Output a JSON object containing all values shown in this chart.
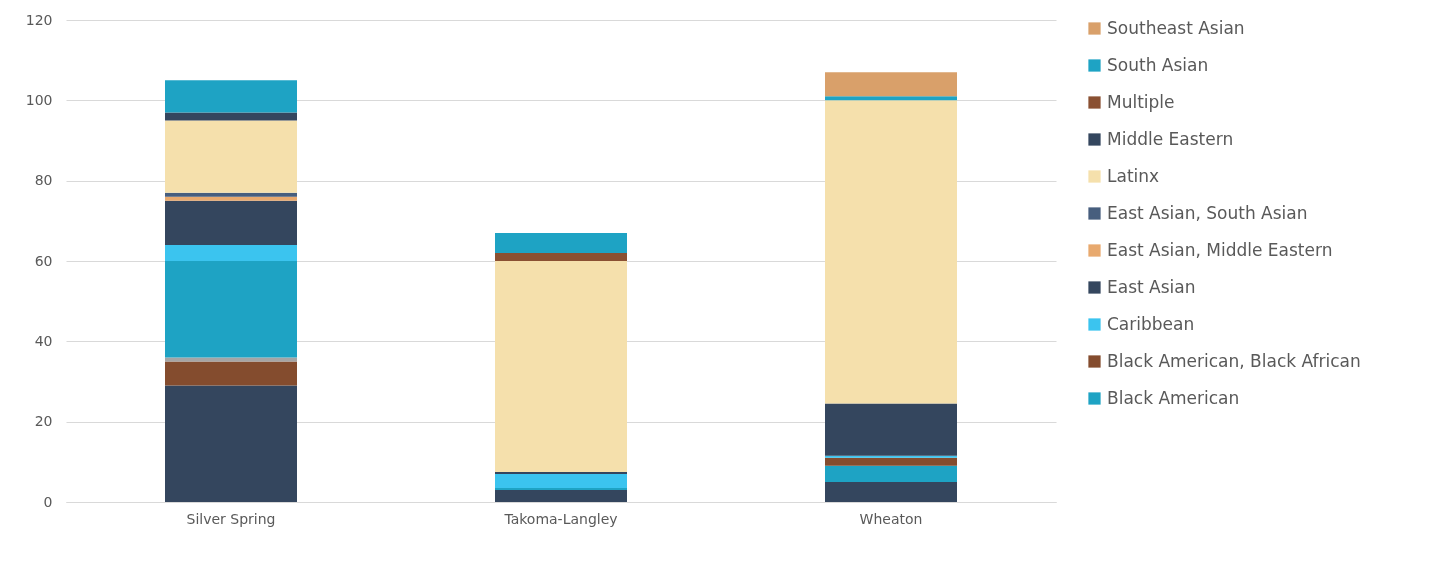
{
  "chart_data": {
    "type": "bar",
    "stacked": true,
    "categories": [
      "Silver Spring",
      "Takoma-Langley",
      "Wheaton"
    ],
    "series": [
      {
        "color": "#34465e",
        "values": [
          29,
          3,
          5
        ]
      },
      {
        "color": "#844c2e",
        "values": [
          6,
          0,
          0
        ]
      },
      {
        "color": "#a5a5a5",
        "values": [
          1,
          0,
          0
        ]
      },
      {
        "name": "Black American",
        "color": "#1ea3c4",
        "values": [
          24,
          0.5,
          4
        ]
      },
      {
        "name": "Black American, Black African",
        "color": "#844c2e",
        "values": [
          0,
          0,
          2
        ]
      },
      {
        "name": "Caribbean",
        "color": "#3bc4ef",
        "values": [
          4,
          3.5,
          0.5
        ]
      },
      {
        "name": "East Asian",
        "color": "#34465e",
        "values": [
          11,
          0.5,
          13
        ]
      },
      {
        "name": "East Asian, Middle Eastern",
        "color": "#e8a96e",
        "values": [
          1,
          0,
          0
        ]
      },
      {
        "name": "East Asian, South Asian",
        "color": "#475e7e",
        "values": [
          1,
          0,
          0
        ]
      },
      {
        "name": "Latinx",
        "color": "#f5e0ac",
        "values": [
          18,
          52.5,
          75.5
        ]
      },
      {
        "name": "Middle Eastern",
        "color": "#34465e",
        "values": [
          2,
          0,
          0
        ]
      },
      {
        "name": "Multiple",
        "color": "#8a5032",
        "values": [
          0,
          2,
          0
        ]
      },
      {
        "name": "South Asian",
        "color": "#1ea3c4",
        "values": [
          8,
          5,
          1
        ]
      },
      {
        "name": "Southeast Asian",
        "color": "#d9a06a",
        "values": [
          0,
          0,
          6
        ]
      }
    ],
    "ylim": [
      0,
      120
    ],
    "yticks": [
      0,
      20,
      40,
      60,
      80,
      100,
      120
    ],
    "grid": "y",
    "legend": "right"
  }
}
